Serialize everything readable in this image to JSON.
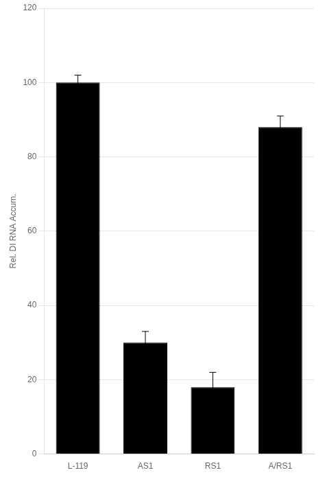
{
  "chart_data": {
    "type": "bar",
    "categories": [
      "L-119",
      "AS1",
      "RS1",
      "A/RS1"
    ],
    "values": [
      100,
      30,
      18,
      88
    ],
    "errors": [
      2,
      3,
      4,
      3
    ],
    "color": "#000000",
    "ylabel": "Rel. DI RNA Accum.",
    "ylim": [
      0,
      120
    ],
    "yticks": [
      0,
      20,
      40,
      60,
      80,
      100,
      120
    ],
    "grid": true
  }
}
